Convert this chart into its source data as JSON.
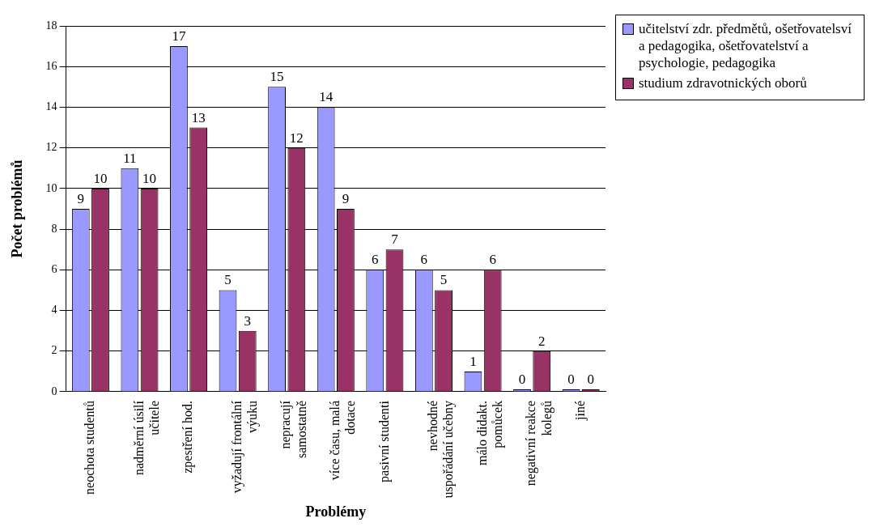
{
  "chart_data": {
    "type": "bar",
    "xlabel": "Problémy",
    "ylabel": "Počet problémů",
    "categories": [
      "neochota studentů",
      "nadměrní úsilí učitele",
      "zpestření hod.",
      "vyžadují frontální výuku",
      "nepracují samostatně",
      "více času, malá dotace",
      "pasivní studenti",
      "nevhodné uspořádání učebny",
      "málo didakt. pomůcek",
      "negativní reakce kolegů",
      "jiné"
    ],
    "series": [
      {
        "name": "učitelství zdr. předmětů, ošetřovatelsví a pedagogika, ošetřovatelství a psychologie, pedagogika",
        "color": "#9999ff",
        "values": [
          9,
          11,
          17,
          5,
          15,
          14,
          6,
          6,
          1,
          0,
          0
        ]
      },
      {
        "name": "studium zdravotnických oborů",
        "color": "#993366",
        "values": [
          10,
          10,
          13,
          3,
          12,
          9,
          7,
          5,
          6,
          2,
          0
        ]
      }
    ],
    "ylim": [
      0,
      18
    ],
    "yticks": [
      0,
      2,
      4,
      6,
      8,
      10,
      12,
      14,
      16,
      18
    ],
    "grid": "y",
    "legend": "top right",
    "data_labels": true
  }
}
